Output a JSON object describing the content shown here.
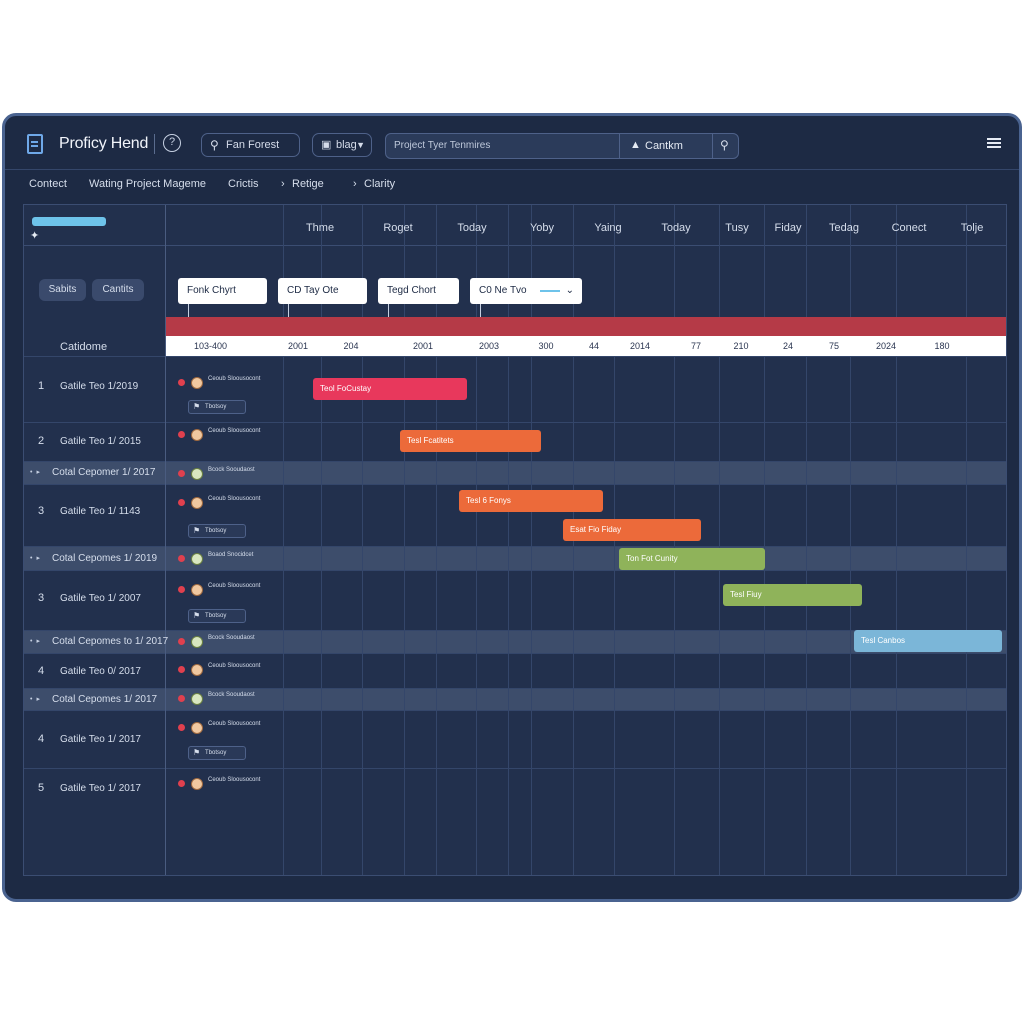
{
  "app": {
    "title": "Proficy Hend",
    "help_glyph": "?",
    "search_label": "Fan Forest",
    "filter_label": "blag",
    "big_search_placeholder": "Project Tyer Tenmires",
    "caution_label": "Cantkm",
    "menu_icon": "hamburger-icon"
  },
  "breadcrumb": [
    "Contect",
    "Wating Project Mageme",
    "Crictis",
    "Retige",
    "Clarity"
  ],
  "left_buttons": [
    "Sabits",
    "Cantits"
  ],
  "category_header": "Catidome",
  "columns": [
    "Thme",
    "Roget",
    "Today",
    "Yoby",
    "Yaing",
    "Today",
    "Tusy",
    "Fiday",
    "Tedag",
    "Conect",
    "Tolje"
  ],
  "chart_buttons": [
    "Fonk Chyrt",
    "CD Tay Ote",
    "Tegd Chort",
    "C0 Ne Tvo"
  ],
  "dates": [
    "103-400",
    "2001",
    "204",
    "2001",
    "2003",
    "300",
    "44",
    "2014",
    "77",
    "210",
    "24",
    "75",
    "2024",
    "180"
  ],
  "rows": [
    {
      "num": "1",
      "text": "Gatile Teo 1/2019",
      "meta": "Ceoub Sloousocont",
      "tag": "Tbotsoy"
    },
    {
      "num": "2",
      "text": "Gatile Teo 1/ 2015",
      "meta": "Ceoub Sloousocont"
    },
    {
      "band": true,
      "text": "Cotal Cepomer 1/ 2017",
      "meta": "Bcock Sooudaost"
    },
    {
      "num": "3",
      "text": "Gatile Teo 1/ 1143",
      "meta": "Ceoub Sloousocont",
      "tag": "Tbotsoy"
    },
    {
      "band": true,
      "text": "Cotal Cepomes 1/ 2019",
      "meta": "Boaod Snocidcet"
    },
    {
      "num": "3",
      "text": "Gatile Teo 1/ 2007",
      "meta": "Ceoub Sloousocont",
      "tag": "Tbotsoy"
    },
    {
      "band": true,
      "text": "Cotal Cepomes to 1/ 2017",
      "meta": "Bcock Sooudaost"
    },
    {
      "num": "4",
      "text": "Gatile Teo 0/ 2017",
      "meta": "Ceoub Sloousocont"
    },
    {
      "band": true,
      "text": "Cotal Cepomes 1/ 2017",
      "meta": "Bcock Sooudaost"
    },
    {
      "num": "4",
      "text": "Gatile Teo 1/ 2017",
      "meta": "Ceoub Sloousocont",
      "tag": "Tbotsoy"
    },
    {
      "num": "5",
      "text": "Gatile Teo 1/ 2017",
      "meta": "Ceoub Sloousocont"
    }
  ],
  "tasks": [
    {
      "label": "Teol FoCustay",
      "color": "#e8385c"
    },
    {
      "label": "Tesl Fcatitets",
      "color": "#ec6a3a"
    },
    {
      "label": "Tesl 6 Fonys",
      "color": "#ec6a3a"
    },
    {
      "label": "Esat Fio Fiday",
      "color": "#ec6a3a"
    },
    {
      "label": "Ton Fot Cunity",
      "color": "#8fb35a"
    },
    {
      "label": "Tesl Fiuy",
      "color": "#8fb35a"
    },
    {
      "label": "Tesl Canbos",
      "color": "#7bb6d8"
    }
  ]
}
